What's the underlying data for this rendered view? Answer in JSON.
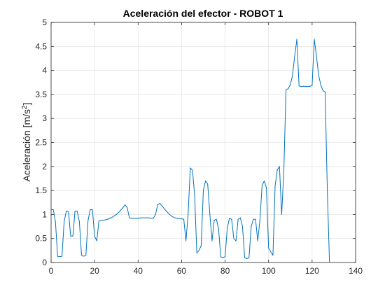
{
  "chart_data": {
    "type": "line",
    "title": "Aceleración del efector - ROBOT 1",
    "xlabel": "",
    "ylabel_base": "Aceleración [m/s",
    "ylabel_sup": "2",
    "ylabel_end": "]",
    "xlim": [
      0,
      140
    ],
    "ylim": [
      0,
      5
    ],
    "xticks": [
      0,
      20,
      40,
      60,
      80,
      100,
      120,
      140
    ],
    "yticks": [
      0,
      0.5,
      1,
      1.5,
      2,
      2.5,
      3,
      3.5,
      4,
      4.5,
      5
    ],
    "ytick_labels": [
      "0",
      "0.5",
      "1",
      "1.5",
      "2",
      "2.5",
      "3",
      "3.5",
      "4",
      "4.5",
      "5"
    ],
    "grid": true,
    "line_color": "#0072BD",
    "series": [
      {
        "x": [
          0,
          1,
          2,
          3,
          4,
          5,
          6,
          7,
          8,
          9,
          10,
          11,
          12,
          13,
          14,
          15,
          16,
          17,
          18,
          19,
          20,
          21,
          22,
          23,
          24,
          25,
          26,
          27,
          28,
          29,
          30,
          31,
          32,
          33,
          34,
          35,
          36,
          37,
          38,
          39,
          40,
          41,
          42,
          43,
          44,
          45,
          46,
          47,
          48,
          49,
          50,
          51,
          52,
          53,
          54,
          55,
          56,
          57,
          58,
          59,
          60,
          61,
          62,
          63,
          64,
          65,
          66,
          67,
          68,
          69,
          70,
          71,
          72,
          73,
          74,
          75,
          76,
          77,
          78,
          79,
          80,
          81,
          82,
          83,
          84,
          85,
          86,
          87,
          88,
          89,
          90,
          91,
          92,
          93,
          94,
          95,
          96,
          97,
          98,
          99,
          100,
          101,
          102,
          103,
          104,
          105,
          106,
          107,
          108,
          109,
          110,
          111,
          112,
          113,
          114,
          115,
          116,
          117,
          118,
          119,
          120,
          121,
          122,
          123,
          124,
          125,
          126,
          127,
          128
        ],
        "y": [
          1.1,
          1.1,
          0.85,
          0.13,
          0.12,
          0.13,
          0.85,
          1.07,
          1.06,
          0.55,
          0.55,
          1.07,
          1.07,
          0.85,
          0.15,
          0.13,
          0.15,
          0.88,
          1.1,
          1.1,
          0.55,
          0.45,
          0.87,
          0.88,
          0.88,
          0.89,
          0.9,
          0.92,
          0.94,
          0.97,
          1.0,
          1.04,
          1.09,
          1.14,
          1.2,
          1.14,
          0.93,
          0.92,
          0.92,
          0.92,
          0.92,
          0.93,
          0.93,
          0.93,
          0.93,
          0.93,
          0.92,
          0.92,
          1.0,
          1.2,
          1.23,
          1.18,
          1.12,
          1.07,
          1.02,
          0.98,
          0.95,
          0.93,
          0.92,
          0.91,
          0.91,
          0.9,
          0.45,
          1.0,
          1.97,
          1.92,
          1.4,
          0.2,
          0.25,
          0.35,
          1.5,
          1.7,
          1.63,
          1.0,
          0.45,
          0.88,
          0.9,
          0.7,
          0.12,
          0.1,
          0.12,
          0.72,
          0.92,
          0.9,
          0.5,
          0.45,
          0.9,
          0.93,
          0.75,
          0.1,
          0.08,
          0.1,
          0.75,
          0.9,
          0.9,
          0.45,
          0.88,
          1.6,
          1.7,
          1.55,
          0.3,
          0.22,
          0.15,
          1.6,
          1.93,
          2.0,
          1.0,
          1.9,
          3.6,
          3.62,
          3.7,
          3.9,
          4.3,
          4.65,
          3.68,
          3.66,
          3.67,
          3.67,
          3.66,
          3.67,
          3.68,
          4.65,
          4.3,
          3.9,
          3.7,
          3.58,
          3.55,
          1.5,
          0.0
        ]
      }
    ]
  }
}
